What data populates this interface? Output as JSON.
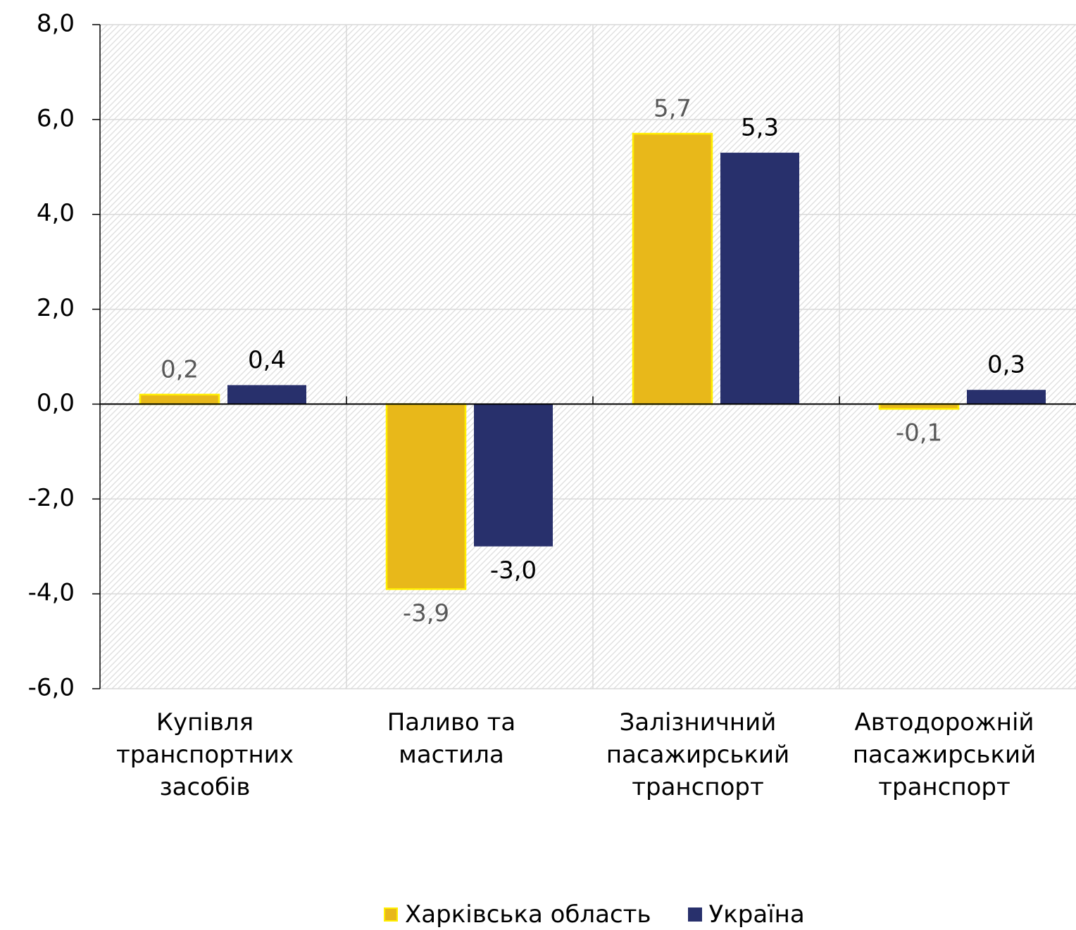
{
  "chart_data": {
    "type": "bar",
    "categories": [
      "Купівля транспортних засобів",
      "Паливо та мастила",
      "Залізничний пасажирський транспорт",
      "Автодорожній пасажирський транспорт"
    ],
    "series": [
      {
        "name": "Харківська область",
        "color": "#e8b81a",
        "values": [
          0.2,
          -3.9,
          5.7,
          -0.1
        ],
        "value_labels": [
          "0,2",
          "-3,9",
          "5,7",
          "-0,1"
        ]
      },
      {
        "name": "Україна",
        "color": "#28306c",
        "values": [
          0.4,
          -3.0,
          5.3,
          0.3
        ],
        "value_labels": [
          "0,4",
          "-3,0",
          "5,3",
          "0,3"
        ]
      }
    ],
    "ylim": [
      -6,
      8
    ],
    "yticks": [
      {
        "value": -6,
        "label": "-6,0"
      },
      {
        "value": -4,
        "label": "-4,0"
      },
      {
        "value": -2,
        "label": "-2,0"
      },
      {
        "value": 0,
        "label": "0,0"
      },
      {
        "value": 2,
        "label": "2,0"
      },
      {
        "value": 4,
        "label": "4,0"
      },
      {
        "value": 6,
        "label": "6,0"
      },
      {
        "value": 8,
        "label": "8,0"
      }
    ],
    "grid": true
  }
}
